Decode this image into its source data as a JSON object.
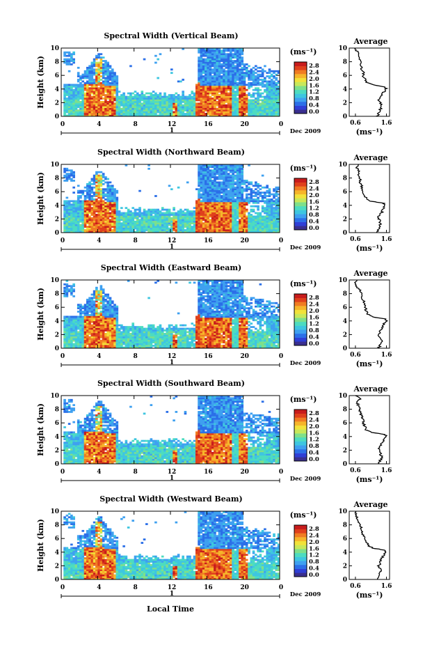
{
  "figure": {
    "xlabel": "Local Time",
    "date_label": "Dec 2009",
    "day_label": "1"
  },
  "colorbar": {
    "unit": "(ms⁻¹)",
    "ticks": [
      "0.0",
      "0.4",
      "0.8",
      "1.2",
      "1.6",
      "2.0",
      "2.4",
      "2.8"
    ],
    "colors": [
      "#3a2f8f",
      "#2f3fd6",
      "#2b6fe8",
      "#3ea0f0",
      "#3ec6e0",
      "#4ddcc0",
      "#7fe08a",
      "#c8e85a",
      "#f2e23a",
      "#f6b52a",
      "#f07c22",
      "#e0401c",
      "#c81c1c"
    ]
  },
  "chart_data": [
    {
      "type": "heatmap",
      "title": "Spectral Width (Vertical Beam)",
      "ylabel": "Height (km)",
      "x_ticks": [
        "0",
        "4",
        "8",
        "12",
        "16",
        "20",
        "0"
      ],
      "y_ticks": [
        "0",
        "2",
        "4",
        "6",
        "8",
        "10"
      ],
      "xlim": [
        0,
        24
      ],
      "ylim": [
        0,
        10
      ],
      "profile": {
        "title": "Average",
        "xlabel": "(ms⁻¹)",
        "x_ticks": [
          "0.6",
          "1.6"
        ],
        "y_ticks": [
          "0",
          "2",
          "4",
          "6",
          "8",
          "10"
        ],
        "height": [
          0,
          0.5,
          1,
          1.5,
          2,
          2.5,
          3,
          3.5,
          4,
          4.3,
          4.6,
          5,
          5.5,
          6,
          6.5,
          7,
          7.5,
          8,
          8.5,
          9,
          9.5,
          10
        ],
        "value": [
          1.3,
          1.35,
          1.4,
          1.45,
          1.4,
          1.35,
          1.45,
          1.5,
          1.6,
          1.55,
          1.2,
          0.95,
          0.9,
          0.85,
          0.85,
          0.8,
          0.75,
          0.8,
          0.7,
          0.7,
          0.65,
          0.6
        ]
      }
    },
    {
      "type": "heatmap",
      "title": "Spectral Width (Northward Beam)",
      "ylabel": "Height (km)",
      "x_ticks": [
        "0",
        "4",
        "8",
        "12",
        "16",
        "20",
        "0"
      ],
      "y_ticks": [
        "0",
        "2",
        "4",
        "6",
        "8",
        "10"
      ],
      "xlim": [
        0,
        24
      ],
      "ylim": [
        0,
        10
      ],
      "profile": {
        "title": "Average",
        "xlabel": "(ms⁻¹)",
        "x_ticks": [
          "0.6",
          "1.6"
        ],
        "y_ticks": [
          "0",
          "2",
          "4",
          "6",
          "8",
          "10"
        ],
        "height": [
          0,
          0.5,
          1,
          1.5,
          2,
          2.5,
          3,
          3.5,
          4,
          4.3,
          4.6,
          5,
          5.5,
          6,
          6.5,
          7,
          7.5,
          8,
          8.5,
          9,
          9.5,
          10
        ],
        "value": [
          1.3,
          1.35,
          1.4,
          1.4,
          1.35,
          1.35,
          1.45,
          1.5,
          1.55,
          1.5,
          1.1,
          0.95,
          0.9,
          0.85,
          0.8,
          0.8,
          0.75,
          0.75,
          0.7,
          0.7,
          0.65,
          0.7
        ]
      }
    },
    {
      "type": "heatmap",
      "title": "Spectral Width (Eastward Beam)",
      "ylabel": "Height (km)",
      "x_ticks": [
        "0",
        "4",
        "8",
        "12",
        "16",
        "20",
        "0"
      ],
      "y_ticks": [
        "0",
        "2",
        "4",
        "6",
        "8",
        "10"
      ],
      "xlim": [
        0,
        24
      ],
      "ylim": [
        0,
        10
      ],
      "profile": {
        "title": "Average",
        "xlabel": "(ms⁻¹)",
        "x_ticks": [
          "0.6",
          "1.6"
        ],
        "y_ticks": [
          "0",
          "2",
          "4",
          "6",
          "8",
          "10"
        ],
        "height": [
          0,
          0.5,
          1,
          1.5,
          2,
          2.5,
          3,
          3.5,
          4,
          4.3,
          4.6,
          5,
          5.5,
          6,
          6.5,
          7,
          7.5,
          8,
          8.5,
          9,
          9.5,
          10
        ],
        "value": [
          1.35,
          1.4,
          1.45,
          1.4,
          1.35,
          1.4,
          1.45,
          1.5,
          1.6,
          1.55,
          1.15,
          1.0,
          0.95,
          0.9,
          0.9,
          0.85,
          0.8,
          0.8,
          0.75,
          0.65,
          0.6,
          0.65
        ]
      }
    },
    {
      "type": "heatmap",
      "title": "Spectral Width (Southward Beam)",
      "ylabel": "Height (km)",
      "x_ticks": [
        "0",
        "4",
        "8",
        "12",
        "16",
        "20",
        "0"
      ],
      "y_ticks": [
        "0",
        "2",
        "4",
        "6",
        "8",
        "10"
      ],
      "xlim": [
        0,
        24
      ],
      "ylim": [
        0,
        10
      ],
      "profile": {
        "title": "Average",
        "xlabel": "(ms⁻¹)",
        "x_ticks": [
          "0.6",
          "1.6"
        ],
        "y_ticks": [
          "0",
          "2",
          "4",
          "6",
          "8",
          "10"
        ],
        "height": [
          0,
          0.5,
          1,
          1.5,
          2,
          2.5,
          3,
          3.5,
          4,
          4.3,
          4.6,
          5,
          5.5,
          6,
          6.5,
          7,
          7.5,
          8,
          8.5,
          9,
          9.5,
          10
        ],
        "value": [
          1.35,
          1.4,
          1.45,
          1.4,
          1.35,
          1.4,
          1.45,
          1.5,
          1.6,
          1.55,
          1.1,
          0.95,
          0.9,
          0.85,
          0.85,
          0.8,
          0.75,
          0.75,
          0.7,
          0.65,
          0.75,
          0.6
        ]
      }
    },
    {
      "type": "heatmap",
      "title": "Spectral Width (Westward Beam)",
      "ylabel": "Height (km)",
      "x_ticks": [
        "0",
        "4",
        "8",
        "12",
        "16",
        "20",
        "0"
      ],
      "y_ticks": [
        "0",
        "2",
        "4",
        "6",
        "8",
        "10"
      ],
      "xlim": [
        0,
        24
      ],
      "ylim": [
        0,
        10
      ],
      "profile": {
        "title": "Average",
        "xlabel": "(ms⁻¹)",
        "x_ticks": [
          "0.6",
          "1.6"
        ],
        "y_ticks": [
          "0",
          "2",
          "4",
          "6",
          "8",
          "10"
        ],
        "height": [
          0,
          0.5,
          1,
          1.5,
          2,
          2.5,
          3,
          3.5,
          4,
          4.3,
          4.6,
          5,
          5.5,
          6,
          6.5,
          7,
          7.5,
          8,
          8.5,
          9,
          9.5,
          10
        ],
        "value": [
          1.3,
          1.35,
          1.4,
          1.4,
          1.35,
          1.4,
          1.45,
          1.5,
          1.6,
          1.55,
          1.15,
          1.0,
          0.95,
          0.9,
          0.85,
          0.8,
          0.8,
          0.75,
          0.7,
          0.65,
          0.6,
          0.6
        ]
      }
    }
  ]
}
